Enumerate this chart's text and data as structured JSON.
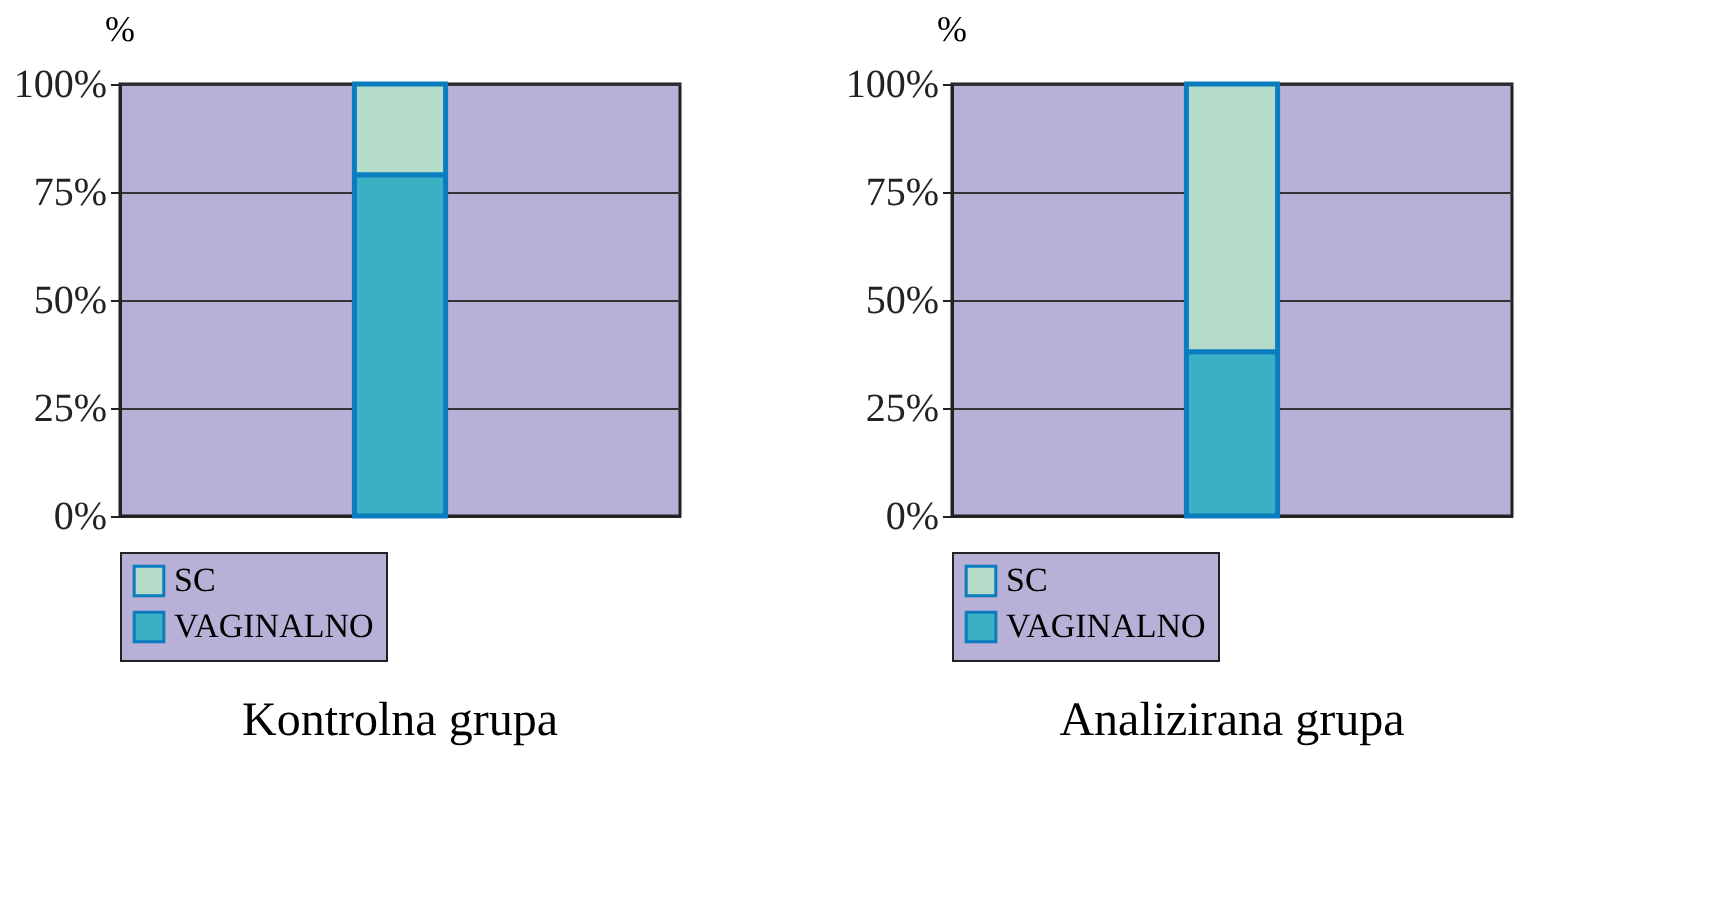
{
  "chart_data": [
    {
      "type": "bar",
      "title": "Kontrolna grupa",
      "ylabel": "%",
      "stacked": true,
      "categories": [
        null
      ],
      "series": [
        {
          "name": "VAGINALNO",
          "color": "#3bb0c3",
          "values": [
            79
          ]
        },
        {
          "name": "SC",
          "color": "#b5dcc8",
          "values": [
            21
          ]
        }
      ],
      "ylim": [
        0,
        100
      ],
      "yticks": [
        {
          "value": 0,
          "label": "0%"
        },
        {
          "value": 25,
          "label": "25%"
        },
        {
          "value": 50,
          "label": "50%"
        },
        {
          "value": 75,
          "label": "75%"
        },
        {
          "value": 100,
          "label": "100%"
        }
      ],
      "grid": "y",
      "legend": "bottom"
    },
    {
      "type": "bar",
      "title": "Analizirana grupa",
      "ylabel": "%",
      "stacked": true,
      "categories": [
        null
      ],
      "series": [
        {
          "name": "VAGINALNO",
          "color": "#3bb0c3",
          "values": [
            38
          ]
        },
        {
          "name": "SC",
          "color": "#b5dcc8",
          "values": [
            62
          ]
        }
      ],
      "ylim": [
        0,
        100
      ],
      "yticks": [
        {
          "value": 0,
          "label": "0%"
        },
        {
          "value": 25,
          "label": "25%"
        },
        {
          "value": 50,
          "label": "50%"
        },
        {
          "value": 75,
          "label": "75%"
        },
        {
          "value": 100,
          "label": "100%"
        }
      ],
      "grid": "y",
      "legend": "bottom"
    }
  ]
}
